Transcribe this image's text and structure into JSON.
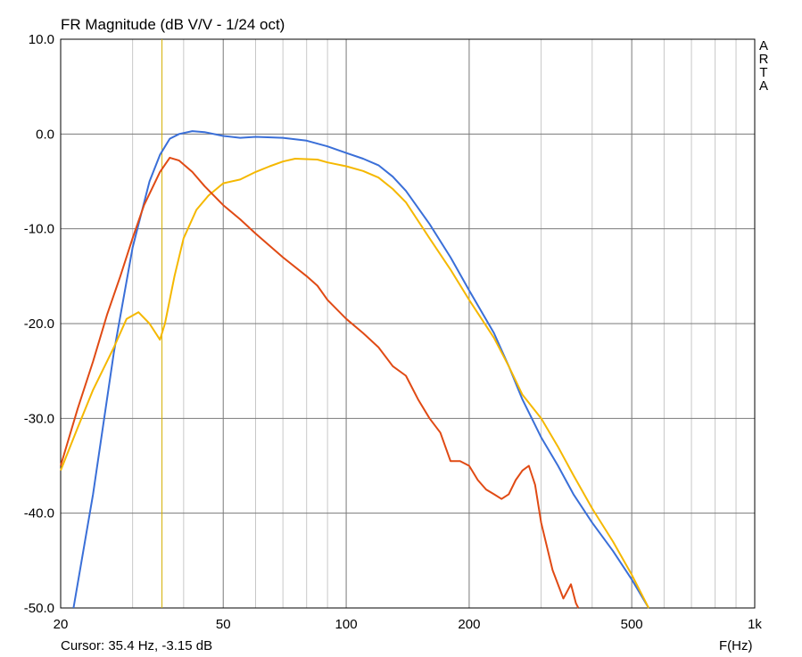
{
  "title": "FR Magnitude (dB V/V - 1/24 oct)",
  "brand": [
    "A",
    "R",
    "T",
    "A"
  ],
  "cursor_readout": "Cursor: 35.4 Hz, -3.15 dB",
  "x_unit_label": "F(Hz)",
  "chart_data": {
    "type": "line",
    "title": "FR Magnitude (dB V/V - 1/24 oct)",
    "xlabel": "F(Hz)",
    "ylabel": "",
    "xscale": "log",
    "xlim": [
      20,
      1000
    ],
    "ylim": [
      -50,
      10
    ],
    "grid": true,
    "x_ticks": [
      {
        "value": 20,
        "label": "20"
      },
      {
        "value": 50,
        "label": "50"
      },
      {
        "value": 100,
        "label": "100"
      },
      {
        "value": 200,
        "label": "200"
      },
      {
        "value": 500,
        "label": "500"
      },
      {
        "value": 1000,
        "label": "1k"
      }
    ],
    "y_ticks": [
      {
        "value": 10,
        "label": "10.0"
      },
      {
        "value": 0,
        "label": "0.0"
      },
      {
        "value": -10,
        "label": "-10.0"
      },
      {
        "value": -20,
        "label": "-20.0"
      },
      {
        "value": -30,
        "label": "-30.0"
      },
      {
        "value": -40,
        "label": "-40.0"
      },
      {
        "value": -50,
        "label": "-50.0"
      }
    ],
    "cursor": {
      "x": 35.4,
      "color": "#d4b000"
    },
    "series": [
      {
        "color": "#3a6fd8",
        "points": [
          [
            21.5,
            -50
          ],
          [
            24,
            -38
          ],
          [
            27,
            -23
          ],
          [
            30,
            -12
          ],
          [
            33,
            -5
          ],
          [
            35,
            -2.2
          ],
          [
            37,
            -0.5
          ],
          [
            39,
            0
          ],
          [
            42,
            0.3
          ],
          [
            45,
            0.2
          ],
          [
            50,
            -0.2
          ],
          [
            55,
            -0.4
          ],
          [
            60,
            -0.3
          ],
          [
            70,
            -0.4
          ],
          [
            80,
            -0.7
          ],
          [
            90,
            -1.3
          ],
          [
            100,
            -2
          ],
          [
            110,
            -2.6
          ],
          [
            120,
            -3.3
          ],
          [
            130,
            -4.5
          ],
          [
            140,
            -6
          ],
          [
            160,
            -9.5
          ],
          [
            180,
            -13
          ],
          [
            200,
            -16.5
          ],
          [
            230,
            -21
          ],
          [
            250,
            -24.5
          ],
          [
            270,
            -28
          ],
          [
            300,
            -32
          ],
          [
            330,
            -35
          ],
          [
            360,
            -38
          ],
          [
            400,
            -41
          ],
          [
            450,
            -44
          ],
          [
            500,
            -47
          ],
          [
            550,
            -50
          ]
        ]
      },
      {
        "color": "#f5b800",
        "points": [
          [
            20,
            -35.5
          ],
          [
            22,
            -31
          ],
          [
            24,
            -27
          ],
          [
            27,
            -22.5
          ],
          [
            29,
            -19.5
          ],
          [
            31,
            -18.8
          ],
          [
            33,
            -20
          ],
          [
            35,
            -21.7
          ],
          [
            36,
            -20
          ],
          [
            38,
            -15
          ],
          [
            40,
            -11
          ],
          [
            43,
            -8
          ],
          [
            46,
            -6.5
          ],
          [
            50,
            -5.2
          ],
          [
            55,
            -4.8
          ],
          [
            60,
            -4
          ],
          [
            65,
            -3.4
          ],
          [
            70,
            -2.9
          ],
          [
            75,
            -2.6
          ],
          [
            85,
            -2.7
          ],
          [
            90,
            -3
          ],
          [
            100,
            -3.4
          ],
          [
            110,
            -3.9
          ],
          [
            120,
            -4.6
          ],
          [
            130,
            -5.8
          ],
          [
            140,
            -7.2
          ],
          [
            160,
            -11
          ],
          [
            180,
            -14.3
          ],
          [
            200,
            -17.5
          ],
          [
            230,
            -21.5
          ],
          [
            250,
            -24.5
          ],
          [
            270,
            -27.5
          ],
          [
            300,
            -30
          ],
          [
            330,
            -33
          ],
          [
            360,
            -36
          ],
          [
            400,
            -39.5
          ],
          [
            450,
            -43
          ],
          [
            500,
            -46.5
          ],
          [
            550,
            -50
          ]
        ]
      },
      {
        "color": "#e04a14",
        "points": [
          [
            20,
            -35
          ],
          [
            22,
            -29
          ],
          [
            24,
            -24
          ],
          [
            26,
            -19
          ],
          [
            28,
            -15
          ],
          [
            30,
            -11
          ],
          [
            32,
            -7.5
          ],
          [
            35,
            -4
          ],
          [
            37,
            -2.5
          ],
          [
            39,
            -2.8
          ],
          [
            42,
            -4
          ],
          [
            45,
            -5.5
          ],
          [
            50,
            -7.5
          ],
          [
            55,
            -9
          ],
          [
            60,
            -10.5
          ],
          [
            70,
            -13
          ],
          [
            80,
            -15
          ],
          [
            85,
            -16
          ],
          [
            90,
            -17.5
          ],
          [
            100,
            -19.5
          ],
          [
            110,
            -21
          ],
          [
            120,
            -22.5
          ],
          [
            130,
            -24.5
          ],
          [
            140,
            -25.5
          ],
          [
            150,
            -28
          ],
          [
            160,
            -30
          ],
          [
            170,
            -31.5
          ],
          [
            180,
            -34.5
          ],
          [
            190,
            -34.5
          ],
          [
            200,
            -35
          ],
          [
            210,
            -36.5
          ],
          [
            220,
            -37.5
          ],
          [
            230,
            -38
          ],
          [
            240,
            -38.5
          ],
          [
            250,
            -38
          ],
          [
            260,
            -36.5
          ],
          [
            270,
            -35.5
          ],
          [
            280,
            -35
          ],
          [
            290,
            -37
          ],
          [
            300,
            -41
          ],
          [
            320,
            -46
          ],
          [
            340,
            -49
          ],
          [
            350,
            -48
          ],
          [
            355,
            -47.5
          ],
          [
            365,
            -49.5
          ],
          [
            370,
            -50
          ]
        ]
      }
    ]
  }
}
